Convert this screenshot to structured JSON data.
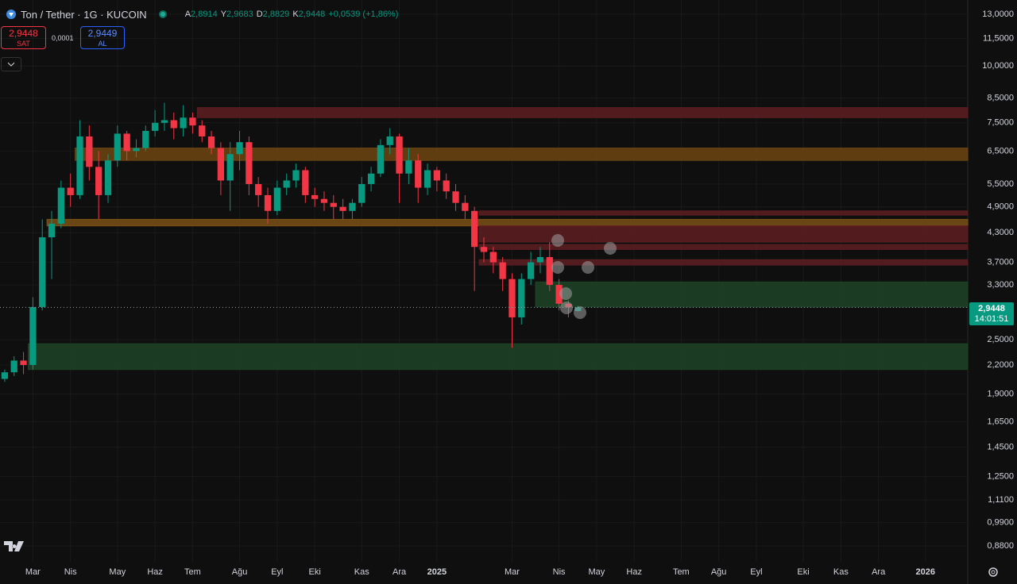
{
  "header": {
    "symbol": "Ton / Tether · 1G · KUCOIN",
    "ohlc": [
      {
        "key": "A",
        "value": "2,8914"
      },
      {
        "key": "Y",
        "value": "2,9683"
      },
      {
        "key": "D",
        "value": "2,8829"
      },
      {
        "key": "K",
        "value": "2,9448"
      }
    ],
    "change": "+0,0539 (+1,86%)",
    "sell": {
      "price": "2,9448",
      "label": "SAT"
    },
    "spread": "0,0001",
    "buy": {
      "price": "2,9449",
      "label": "AL"
    },
    "price_tag": {
      "time": "14:01:51"
    }
  },
  "chart_data": {
    "type": "candlestick",
    "log_scale": true,
    "up_color": "#089981",
    "down_color": "#f23645",
    "ylim": [
      0.812,
      13.97
    ],
    "yticks": [
      {
        "value": 13,
        "label": "13,0000"
      },
      {
        "value": 11.5,
        "label": "11,5000"
      },
      {
        "value": 10,
        "label": "10,0000"
      },
      {
        "value": 8.5,
        "label": "8,5000"
      },
      {
        "value": 7.5,
        "label": "7,5000"
      },
      {
        "value": 6.5,
        "label": "6,5000"
      },
      {
        "value": 5.5,
        "label": "5,5000"
      },
      {
        "value": 4.9,
        "label": "4,9000"
      },
      {
        "value": 4.3,
        "label": "4,3000"
      },
      {
        "value": 3.7,
        "label": "3,7000"
      },
      {
        "value": 3.3,
        "label": "3,3000"
      },
      {
        "value": 2.5,
        "label": "2,5000"
      },
      {
        "value": 2.2,
        "label": "2,2000"
      },
      {
        "value": 1.9,
        "label": "1,9000"
      },
      {
        "value": 1.65,
        "label": "1,6500"
      },
      {
        "value": 1.45,
        "label": "1,4500"
      },
      {
        "value": 1.25,
        "label": "1,2500"
      },
      {
        "value": 1.11,
        "label": "1,1100"
      },
      {
        "value": 0.99,
        "label": "0,9900"
      },
      {
        "value": 0.88,
        "label": "0,8800"
      }
    ],
    "categories": [
      null,
      null,
      null,
      "Mar",
      null,
      null,
      null,
      "Nis",
      null,
      null,
      null,
      null,
      "May",
      null,
      null,
      null,
      "Haz",
      null,
      null,
      null,
      "Tem",
      null,
      null,
      null,
      null,
      "Ağu",
      null,
      null,
      null,
      "Eyl",
      null,
      null,
      null,
      "Eki",
      null,
      null,
      null,
      null,
      "Kas",
      null,
      null,
      null,
      "Ara",
      null,
      null,
      null,
      "2025",
      null,
      null,
      null,
      null,
      null,
      null,
      null,
      "Mar",
      null,
      null,
      null,
      null,
      "Nis",
      null,
      null,
      null,
      "May",
      null,
      null,
      null,
      "Haz",
      null,
      null,
      null,
      null,
      "Tem",
      null,
      null,
      null,
      "Ağu",
      null,
      null,
      null,
      "Eyl",
      null,
      null,
      null,
      null,
      "Eki",
      null,
      null,
      null,
      "Kas",
      null,
      null,
      null,
      "Ara",
      null,
      null,
      null,
      null,
      "2026",
      null,
      null,
      null,
      null
    ],
    "open": [
      2.05,
      2.12,
      2.25,
      2.2,
      2.95,
      4.2,
      4.5,
      5.4,
      5.2,
      7.0,
      6.0,
      5.2,
      6.2,
      7.1,
      6.5,
      6.6,
      7.2,
      7.5,
      7.6,
      7.3,
      7.7,
      7.4,
      7.0,
      6.6,
      5.6,
      6.4,
      6.8,
      5.5,
      5.2,
      4.8,
      5.4,
      5.6,
      5.9,
      5.2,
      5.1,
      5.0,
      4.9,
      4.8,
      5.0,
      5.5,
      5.8,
      6.7,
      7.0,
      5.8,
      6.2,
      5.4,
      5.9,
      5.6,
      5.3,
      5.0,
      4.8,
      4.0,
      3.9,
      3.7,
      3.4,
      2.8,
      3.4,
      3.7,
      3.8,
      3.3,
      3.0,
      2.8914,
      null,
      null,
      null,
      null,
      null,
      null,
      null,
      null,
      null,
      null,
      null,
      null,
      null,
      null,
      null,
      null,
      null,
      null,
      null,
      null,
      null,
      null,
      null,
      null,
      null,
      null,
      null,
      null,
      null,
      null,
      null,
      null,
      null,
      null,
      null,
      null,
      null,
      null,
      null,
      null,
      null
    ],
    "high": [
      2.15,
      2.3,
      2.35,
      3.1,
      4.6,
      4.8,
      5.6,
      5.8,
      7.6,
      7.4,
      6.5,
      6.4,
      7.4,
      7.2,
      6.9,
      7.4,
      8.0,
      8.3,
      7.9,
      8.2,
      7.9,
      7.6,
      7.2,
      6.8,
      6.8,
      7.2,
      7.0,
      5.7,
      5.4,
      5.6,
      5.8,
      6.1,
      6.0,
      5.4,
      5.3,
      5.2,
      5.1,
      5.1,
      5.7,
      6.0,
      6.9,
      7.3,
      7.1,
      6.6,
      6.4,
      6.1,
      6.0,
      5.8,
      5.5,
      5.2,
      4.9,
      4.2,
      4.0,
      3.8,
      3.5,
      3.5,
      3.9,
      4.0,
      4.1,
      3.4,
      3.05,
      2.9683,
      null,
      null,
      null,
      null,
      null,
      null,
      null,
      null,
      null,
      null,
      null,
      null,
      null,
      null,
      null,
      null,
      null,
      null,
      null,
      null,
      null,
      null,
      null,
      null,
      null,
      null,
      null,
      null,
      null,
      null,
      null,
      null,
      null,
      null,
      null,
      null,
      null,
      null,
      null,
      null,
      null
    ],
    "low": [
      2.02,
      2.08,
      2.1,
      2.15,
      2.9,
      3.4,
      4.4,
      4.9,
      5.1,
      5.6,
      4.6,
      5.0,
      6.0,
      6.2,
      6.3,
      6.5,
      7.0,
      7.2,
      6.9,
      7.0,
      7.1,
      6.8,
      6.4,
      5.2,
      4.8,
      5.9,
      5.2,
      4.9,
      4.5,
      4.7,
      5.2,
      5.4,
      5.0,
      4.9,
      4.8,
      4.6,
      4.6,
      4.6,
      4.9,
      5.3,
      5.7,
      6.4,
      5.0,
      5.5,
      5.0,
      5.2,
      5.3,
      5.1,
      4.8,
      4.6,
      3.2,
      3.7,
      3.5,
      3.2,
      2.4,
      2.7,
      3.3,
      3.5,
      3.2,
      2.9,
      2.8,
      2.8829,
      null,
      null,
      null,
      null,
      null,
      null,
      null,
      null,
      null,
      null,
      null,
      null,
      null,
      null,
      null,
      null,
      null,
      null,
      null,
      null,
      null,
      null,
      null,
      null,
      null,
      null,
      null,
      null,
      null,
      null,
      null,
      null,
      null,
      null,
      null,
      null,
      null,
      null,
      null,
      null,
      null
    ],
    "close": [
      2.12,
      2.25,
      2.2,
      2.95,
      4.2,
      4.5,
      5.4,
      5.2,
      7.0,
      6.0,
      5.2,
      6.2,
      7.1,
      6.5,
      6.6,
      7.2,
      7.5,
      7.6,
      7.3,
      7.7,
      7.4,
      7.0,
      6.6,
      5.6,
      6.4,
      6.8,
      5.5,
      5.2,
      4.8,
      5.4,
      5.6,
      5.9,
      5.2,
      5.1,
      5.0,
      4.9,
      4.8,
      5.0,
      5.5,
      5.8,
      6.7,
      7.0,
      5.8,
      6.2,
      5.4,
      5.9,
      5.6,
      5.3,
      5.0,
      4.8,
      4.0,
      3.9,
      3.7,
      3.4,
      2.8,
      3.4,
      3.7,
      3.8,
      3.3,
      3.0,
      2.95,
      2.9448,
      null,
      null,
      null,
      null,
      null,
      null,
      null,
      null,
      null,
      null,
      null,
      null,
      null,
      null,
      null,
      null,
      null,
      null,
      null,
      null,
      null,
      null,
      null,
      null,
      null,
      null,
      null,
      null,
      null,
      null,
      null,
      null,
      null,
      null,
      null,
      null,
      null,
      null,
      null,
      null,
      null
    ],
    "last": 2.9448,
    "last_label": "2,9448",
    "zones": [
      {
        "start": 21,
        "low": 7.7,
        "high": 8.1,
        "color": "#5e1e22"
      },
      {
        "start": 8,
        "low": 6.2,
        "high": 6.6,
        "color": "#6e4512"
      },
      {
        "start": 5,
        "low": 4.45,
        "high": 4.6,
        "color": "#7a5016"
      },
      {
        "start": 51,
        "low": 4.7,
        "high": 4.8,
        "color": "#5e1e22"
      },
      {
        "start": 51,
        "low": 4.1,
        "high": 4.45,
        "color": "#5e1e22"
      },
      {
        "start": 51,
        "low": 3.95,
        "high": 4.05,
        "color": "#5e1e22"
      },
      {
        "start": 51,
        "low": 3.65,
        "high": 3.75,
        "color": "#5e1e22"
      },
      {
        "start": 57,
        "low": 2.95,
        "high": 3.35,
        "color": "#1d4426"
      },
      {
        "start": 3,
        "low": 2.15,
        "high": 2.45,
        "color": "#1d4426"
      }
    ]
  }
}
